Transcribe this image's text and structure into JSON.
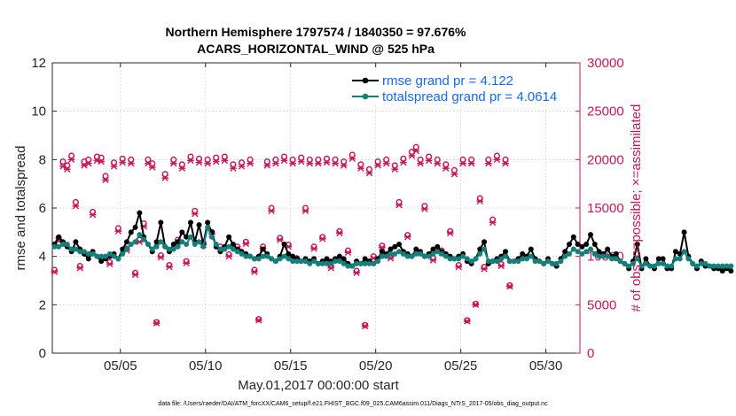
{
  "chart_data": {
    "type": "line",
    "title_line1": "Northern Hemisphere 1797574 / 1840350 = 97.676%",
    "title_line2": "ACARS_HORIZONTAL_WIND @ 525 hPa",
    "xlabel": "May.01,2017 00:00:00 start",
    "ylabel_left": "rmse and totalspread",
    "ylabel_right": "# of obs: o=possible; ×=assimilated",
    "footer": "data file: /Users/raeder/DAI/ATM_forcXX/CAM6_setup/f.e21.FHIST_BGC.f09_025.CAM6assim.011/Diags_NTrS_2017-05/obs_diag_output.nc",
    "xlim": [
      1,
      32
    ],
    "ylim_left": [
      0,
      12
    ],
    "ylim_right": [
      0,
      30000
    ],
    "x_ticks": [
      {
        "value": 5,
        "label": "05/05"
      },
      {
        "value": 10,
        "label": "05/10"
      },
      {
        "value": 15,
        "label": "05/15"
      },
      {
        "value": 20,
        "label": "05/20"
      },
      {
        "value": 25,
        "label": "05/25"
      },
      {
        "value": 30,
        "label": "05/30"
      }
    ],
    "y_ticks_left": [
      {
        "value": 0,
        "label": "0"
      },
      {
        "value": 2,
        "label": "2"
      },
      {
        "value": 4,
        "label": "4"
      },
      {
        "value": 6,
        "label": "6"
      },
      {
        "value": 8,
        "label": "8"
      },
      {
        "value": 10,
        "label": "10"
      },
      {
        "value": 12,
        "label": "12"
      }
    ],
    "y_ticks_right": [
      {
        "value": 0,
        "label": "0"
      },
      {
        "value": 5000,
        "label": "5000"
      },
      {
        "value": 10000,
        "label": "10000"
      },
      {
        "value": 15000,
        "label": "15000"
      },
      {
        "value": 20000,
        "label": "20000"
      },
      {
        "value": 25000,
        "label": "25000"
      },
      {
        "value": 30000,
        "label": "30000"
      }
    ],
    "x_step": 0.25,
    "x_start": 1.125,
    "series": [
      {
        "name": "rmse",
        "legend": "rmse grand pr = 4.122",
        "color": "#000000",
        "axis": "left",
        "values": [
          4.5,
          4.8,
          4.6,
          4.4,
          4.2,
          4.6,
          4.3,
          4.1,
          3.9,
          4.2,
          4.0,
          3.8,
          3.9,
          4.0,
          4.1,
          3.9,
          4.3,
          4.6,
          5.0,
          5.2,
          5.8,
          4.8,
          4.5,
          4.2,
          4.6,
          5.4,
          4.4,
          4.2,
          4.5,
          4.6,
          5.0,
          4.8,
          5.4,
          4.6,
          5.3,
          4.5,
          5.4,
          5.0,
          4.4,
          4.2,
          4.4,
          4.8,
          4.5,
          4.3,
          4.2,
          4.1,
          4.0,
          3.9,
          4.0,
          4.3,
          4.1,
          3.9,
          3.8,
          4.0,
          4.5,
          4.1,
          4.0,
          3.9,
          3.8,
          3.9,
          3.8,
          3.9,
          3.7,
          3.8,
          3.9,
          3.8,
          3.9,
          4.0,
          3.9,
          3.7,
          3.6,
          3.8,
          3.7,
          3.9,
          3.8,
          3.7,
          3.9,
          4.2,
          4.1,
          4.3,
          4.4,
          4.5,
          4.2,
          4.1,
          4.0,
          4.3,
          4.2,
          4.0,
          4.1,
          4.3,
          4.4,
          4.2,
          4.1,
          4.0,
          3.9,
          4.0,
          4.1,
          3.8,
          3.7,
          3.9,
          4.3,
          4.6,
          3.7,
          3.8,
          3.9,
          4.0,
          4.2,
          3.8,
          3.8,
          3.9,
          4.1,
          4.0,
          4.3,
          3.9,
          3.8,
          3.7,
          3.9,
          3.7,
          3.6,
          3.9,
          4.2,
          4.5,
          4.8,
          4.5,
          4.4,
          4.5,
          4.9,
          4.5,
          4.2,
          4.1,
          4.3,
          4.0,
          4.1,
          3.8,
          3.7,
          3.5,
          3.8,
          4.5,
          3.5,
          3.9,
          3.6,
          3.5,
          3.9,
          3.9,
          3.5,
          3.5,
          4.2,
          4.1,
          5.0,
          4.0,
          3.7,
          3.5,
          3.8,
          3.6,
          3.6,
          3.5,
          3.5,
          3.4,
          3.5,
          3.4
        ]
      },
      {
        "name": "totalspread",
        "legend": "totalspread grand pr = 4.0614",
        "color": "#13807c",
        "axis": "left",
        "values": [
          4.4,
          4.4,
          4.5,
          4.5,
          4.3,
          4.3,
          4.2,
          4.2,
          4.1,
          4.1,
          4.0,
          4.0,
          4.0,
          4.1,
          4.0,
          3.9,
          4.1,
          4.3,
          4.5,
          4.6,
          4.9,
          4.7,
          4.5,
          4.3,
          4.4,
          4.6,
          4.4,
          4.3,
          4.3,
          4.4,
          4.6,
          4.5,
          4.8,
          4.5,
          4.6,
          4.4,
          5.2,
          4.8,
          4.5,
          4.3,
          4.3,
          4.4,
          4.3,
          4.2,
          4.1,
          4.0,
          4.0,
          3.9,
          3.9,
          4.0,
          4.0,
          3.9,
          3.8,
          3.9,
          4.0,
          3.9,
          3.8,
          3.8,
          3.8,
          3.8,
          3.7,
          3.8,
          3.7,
          3.7,
          3.7,
          3.7,
          3.8,
          3.8,
          3.7,
          3.6,
          3.6,
          3.7,
          3.7,
          3.7,
          3.7,
          3.7,
          3.8,
          4.0,
          4.0,
          4.1,
          4.1,
          4.2,
          4.1,
          4.0,
          4.0,
          4.1,
          4.1,
          4.0,
          4.0,
          4.1,
          4.2,
          4.1,
          4.0,
          3.9,
          3.9,
          3.9,
          4.0,
          3.9,
          3.8,
          3.9,
          4.1,
          4.3,
          3.8,
          3.8,
          3.8,
          3.9,
          4.0,
          3.8,
          3.8,
          3.8,
          3.9,
          3.9,
          4.0,
          3.8,
          3.8,
          3.7,
          3.8,
          3.7,
          3.7,
          3.8,
          4.0,
          4.1,
          4.3,
          4.2,
          4.1,
          4.2,
          4.3,
          4.1,
          4.0,
          4.0,
          4.0,
          3.9,
          3.9,
          3.8,
          3.7,
          3.6,
          3.7,
          3.9,
          3.6,
          3.7,
          3.6,
          3.6,
          3.7,
          3.7,
          3.6,
          3.6,
          3.9,
          3.9,
          4.2,
          3.9,
          3.7,
          3.6,
          3.7,
          3.7,
          3.6,
          3.6,
          3.6,
          3.6,
          3.6,
          3.6
        ]
      }
    ],
    "obs_possible": {
      "symbol": "o",
      "color": "#c8175a",
      "axis": "right",
      "values": [
        8600,
        11900,
        19800,
        19400,
        20400,
        15600,
        9000,
        19800,
        20000,
        14600,
        20300,
        20200,
        18300,
        9400,
        19700,
        12900,
        20100,
        10800,
        20000,
        8300,
        11700,
        13400,
        20000,
        19600,
        3200,
        10100,
        18500,
        9100,
        20000,
        11700,
        19500,
        9500,
        20300,
        14700,
        20100,
        11400,
        20000,
        12500,
        20200,
        11000,
        20300,
        10200,
        19500,
        11000,
        19700,
        11500,
        20000,
        8600,
        3500,
        11000,
        19800,
        15000,
        20000,
        11900,
        20300,
        11200,
        20000,
        9800,
        20200,
        15000,
        20000,
        11000,
        20000,
        12000,
        20100,
        9000,
        20000,
        12600,
        19800,
        10600,
        20500,
        8500,
        19500,
        2900,
        19000,
        10000,
        19800,
        11100,
        20000,
        10000,
        19400,
        15600,
        20100,
        12200,
        20800,
        21300,
        20000,
        15200,
        20300,
        9800,
        20000,
        10600,
        19500,
        12600,
        18900,
        9100,
        20000,
        3400,
        20000,
        5100,
        16000,
        8900,
        20000,
        13800,
        20400,
        9200,
        20000,
        7000
      ]
    },
    "obs_assimilated": {
      "symbol": "x",
      "color": "#c8175a",
      "axis": "right",
      "values": [
        8400,
        11600,
        19300,
        19000,
        20000,
        15200,
        8800,
        19400,
        19600,
        14300,
        19900,
        19800,
        17900,
        9200,
        19300,
        12600,
        19700,
        10600,
        19600,
        8100,
        11500,
        13100,
        19600,
        19200,
        3100,
        9900,
        18100,
        8900,
        19600,
        11500,
        19100,
        9300,
        19900,
        14400,
        19700,
        11200,
        19600,
        12300,
        19800,
        10800,
        19900,
        10000,
        19100,
        10800,
        19300,
        11300,
        19600,
        8400,
        3400,
        10800,
        19400,
        14700,
        19600,
        11700,
        19900,
        11000,
        19600,
        9600,
        19800,
        14700,
        19600,
        10800,
        19600,
        11800,
        19700,
        8800,
        19600,
        12400,
        19400,
        10400,
        20100,
        8300,
        19100,
        2800,
        18600,
        9800,
        19400,
        10900,
        19600,
        9800,
        19000,
        15300,
        19700,
        12000,
        20400,
        20900,
        19600,
        14900,
        19900,
        9600,
        19600,
        10400,
        19100,
        12400,
        18500,
        8900,
        19600,
        3300,
        19600,
        5000,
        15700,
        8700,
        19600,
        13500,
        20000,
        9000,
        19600,
        6900
      ]
    }
  }
}
